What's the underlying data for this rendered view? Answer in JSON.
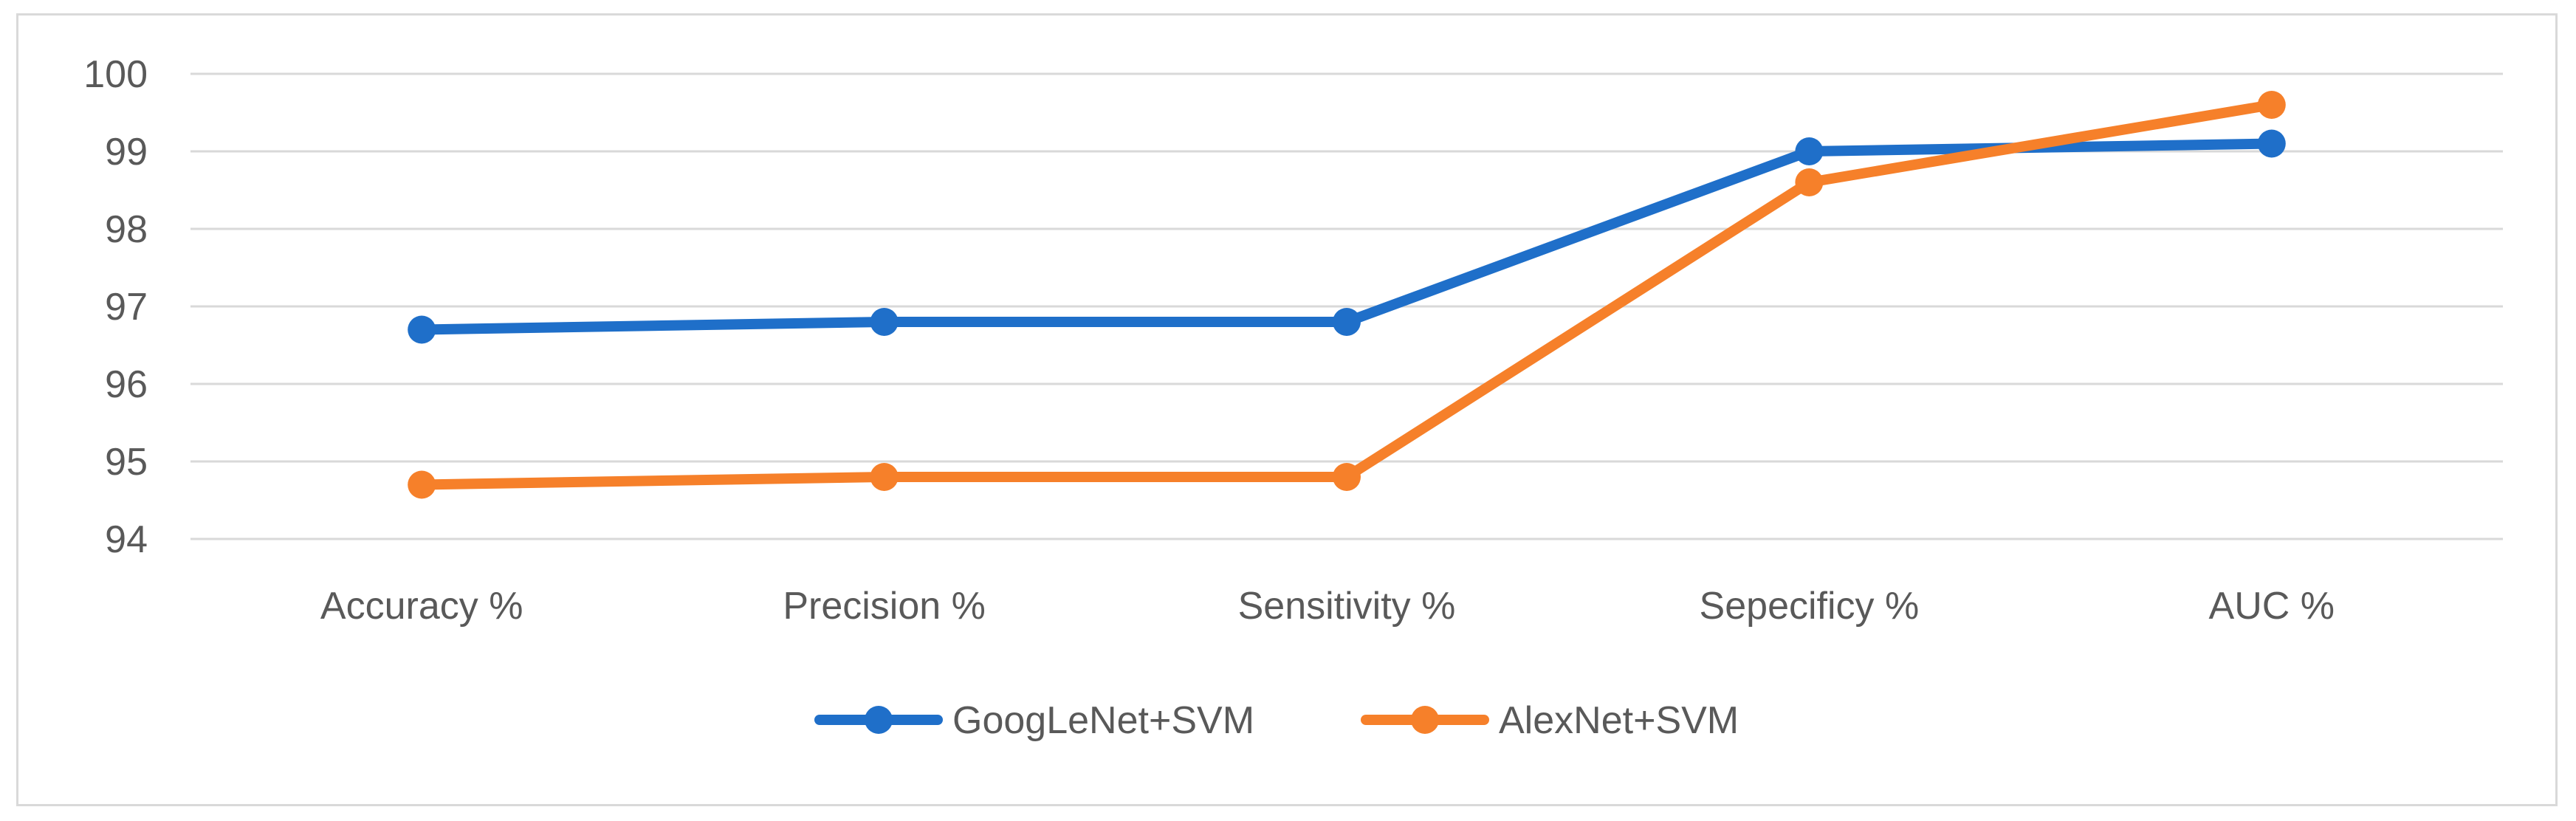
{
  "chart_data": {
    "type": "line",
    "title": "",
    "xlabel": "",
    "ylabel": "",
    "categories": [
      "Accuracy %",
      "Precision %",
      "Sensitivity %",
      "Sepecificy %",
      "AUC %"
    ],
    "ylim": [
      94,
      100
    ],
    "yticks": [
      94,
      95,
      96,
      97,
      98,
      99,
      100
    ],
    "grid": true,
    "legend_position": "bottom",
    "series": [
      {
        "name": "GoogLeNet+SVM",
        "color": "#1f6fc9",
        "values": [
          96.7,
          96.8,
          96.8,
          99.0,
          99.1
        ]
      },
      {
        "name": "AlexNet+SVM",
        "color": "#f6802a",
        "values": [
          94.7,
          94.8,
          94.8,
          98.6,
          99.6
        ]
      }
    ]
  }
}
